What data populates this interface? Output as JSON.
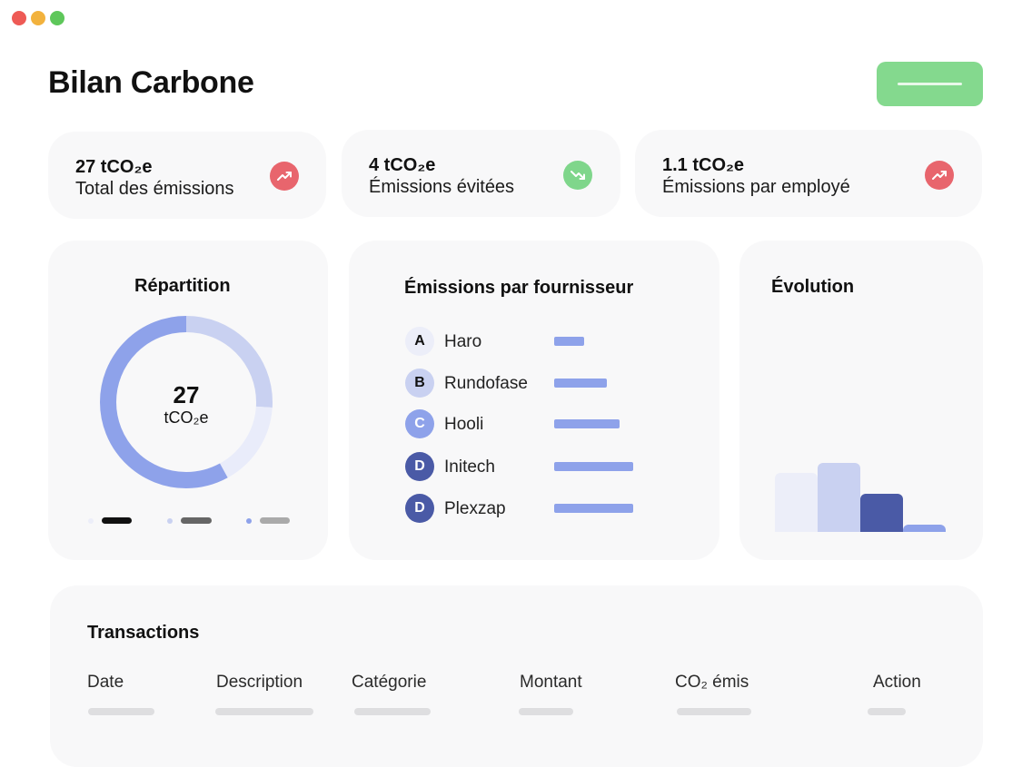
{
  "window": {
    "controls": [
      "close",
      "minimize",
      "maximize"
    ]
  },
  "header": {
    "title": "Bilan Carbone",
    "action_button_color": "#84d98e"
  },
  "stats": [
    {
      "value": "27 tCO₂e",
      "label": "Total des émissions",
      "trend": "up",
      "icon": "trend-up-icon",
      "color": "#e8656d"
    },
    {
      "value": "4 tCO₂e",
      "label": "Émissions évitées",
      "trend": "down",
      "icon": "trend-down-icon",
      "color": "#7fd68b"
    },
    {
      "value": "1.1 tCO₂e",
      "label": "Émissions par employé",
      "trend": "up",
      "icon": "trend-up-icon",
      "color": "#e8656d"
    }
  ],
  "repartition": {
    "title": "Répartition",
    "total": "27",
    "unit": "tCO₂e",
    "segments": [
      {
        "fraction": 0.26,
        "color": "#c9d1f1"
      },
      {
        "fraction": 0.16,
        "color": "#e9ecfa"
      },
      {
        "fraction": 0.58,
        "color": "#8ea2ea"
      }
    ],
    "legend": [
      {
        "dot_color": "#eceef9",
        "bar_color": "#111111"
      },
      {
        "dot_color": "#c9d1f1",
        "bar_color": "#666666"
      },
      {
        "dot_color": "#8ea2ea",
        "bar_color": "#aaaaaa"
      }
    ]
  },
  "suppliers": {
    "title": "Émissions par fournisseur",
    "items": [
      {
        "letter": "A",
        "name": "Haro",
        "value": 0.38,
        "badge_bg": "#eceef9",
        "badge_fg": "#111111"
      },
      {
        "letter": "B",
        "name": "Rundofase",
        "value": 0.67,
        "badge_bg": "#c9d1f1",
        "badge_fg": "#111111"
      },
      {
        "letter": "C",
        "name": "Hooli",
        "value": 0.83,
        "badge_bg": "#8ea2ea",
        "badge_fg": "#ffffff"
      },
      {
        "letter": "D",
        "name": "Initech",
        "value": 1.0,
        "badge_bg": "#4a5aa6",
        "badge_fg": "#ffffff"
      },
      {
        "letter": "D",
        "name": "Plexzap",
        "value": 1.0,
        "badge_bg": "#4a5aa6",
        "badge_fg": "#ffffff"
      }
    ]
  },
  "evolution": {
    "title": "Évolution",
    "bars": [
      {
        "value": 0.86,
        "color": "#eceef9"
      },
      {
        "value": 1.0,
        "color": "#c9d1f1"
      },
      {
        "value": 0.55,
        "color": "#4a5aa6"
      },
      {
        "value": 0.1,
        "color": "#8ea2ea"
      }
    ]
  },
  "transactions": {
    "title": "Transactions",
    "columns": [
      "Date",
      "Description",
      "Catégorie",
      "Montant",
      "CO₂ émis",
      "Action"
    ]
  }
}
